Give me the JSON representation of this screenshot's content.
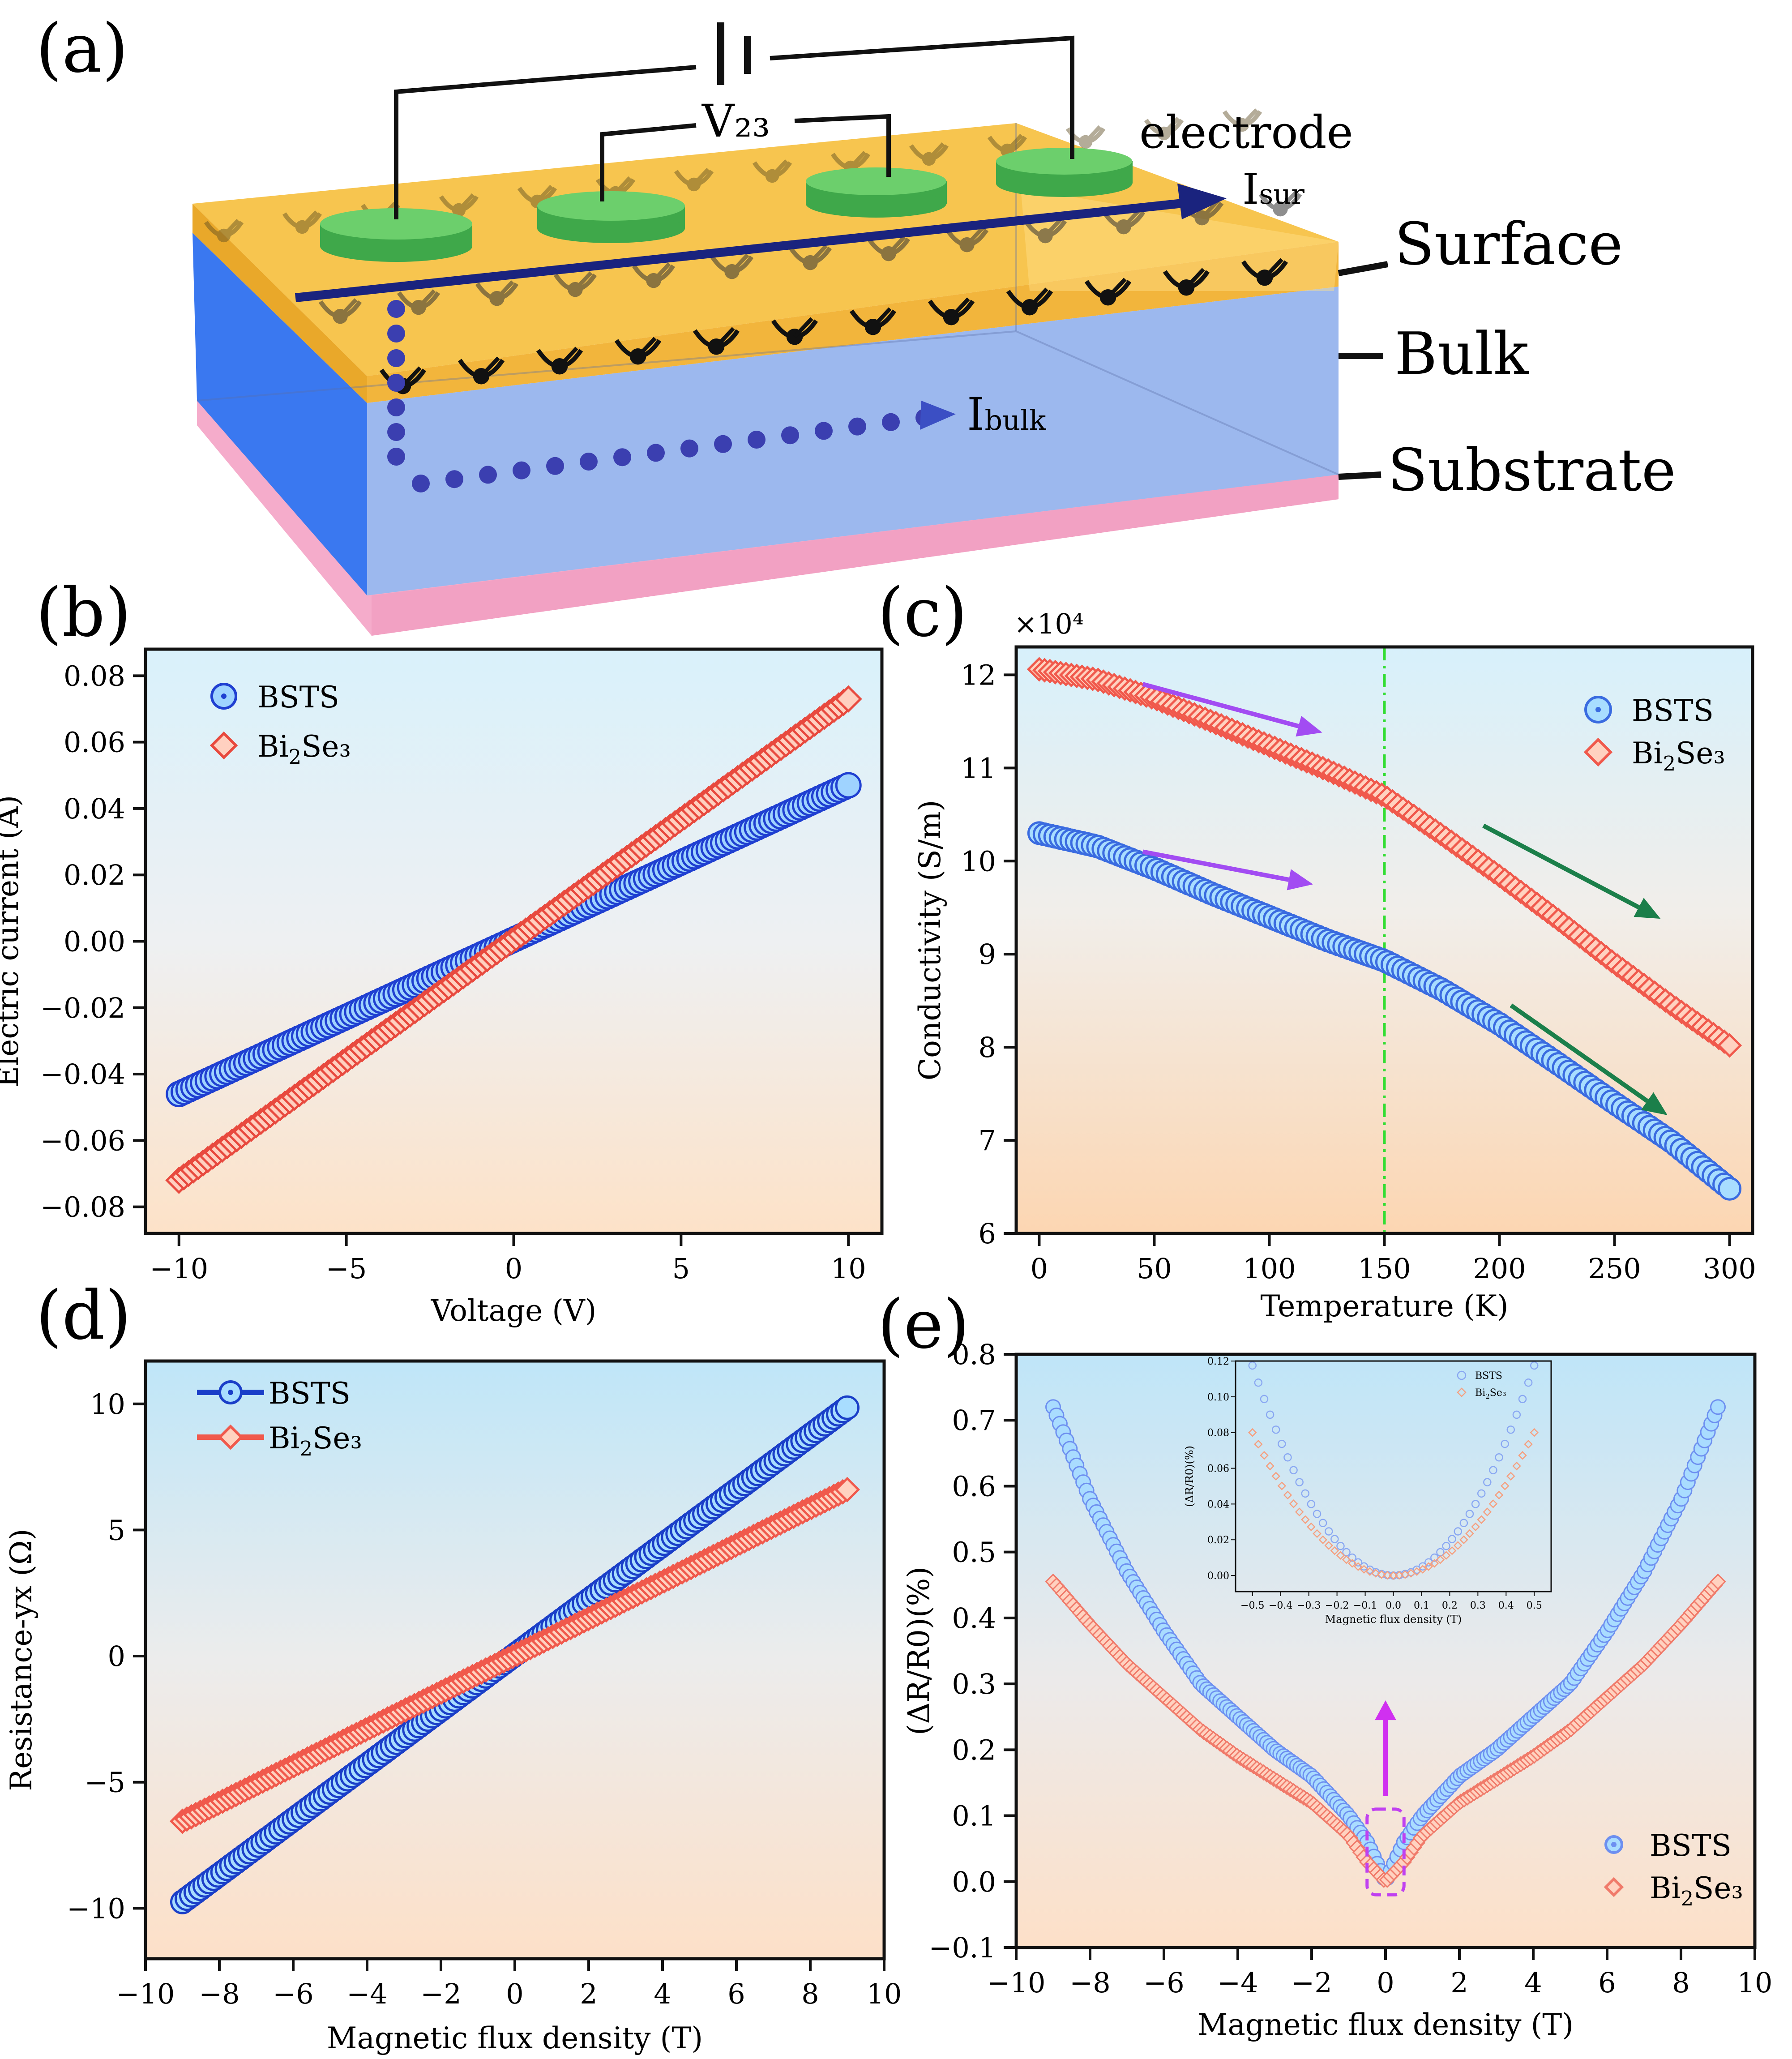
{
  "figure": {
    "schematic": {
      "panel_label": "(a)",
      "labels": {
        "v23": "V₂₃",
        "electrode": "electrode",
        "isur": "I",
        "isur_sub": "sur",
        "ibulk": "I",
        "ibulk_sub": "bulk",
        "surface": "Surface",
        "bulk": "Bulk",
        "substrate": "Substrate"
      },
      "colors": {
        "surface": "#f5b730",
        "bulk": "#5b8df0",
        "substrate": "#f2a6c6",
        "electrode": "#5cbf5c",
        "arrow": "#1a237e"
      }
    }
  },
  "chart_data": [
    {
      "id": "b",
      "panel_label": "(b)",
      "type": "scatter",
      "xlabel": "Voltage (V)",
      "ylabel": "Electric current (A)",
      "xlim": [
        -11,
        11
      ],
      "ylim": [
        -0.088,
        0.088
      ],
      "xticks": [
        -10,
        -5,
        0,
        5,
        10
      ],
      "xtick_labels": [
        "−10",
        "−5",
        "0",
        "5",
        "10"
      ],
      "yticks": [
        -0.08,
        -0.06,
        -0.04,
        -0.02,
        0.0,
        0.02,
        0.04,
        0.06,
        0.08
      ],
      "ytick_labels": [
        "−0.08",
        "−0.06",
        "−0.04",
        "−0.02",
        "0.00",
        "0.02",
        "0.04",
        "0.06",
        "0.08"
      ],
      "legend": {
        "position": "top-left"
      },
      "series": [
        {
          "name": "BSTS",
          "sub": "",
          "tail": "",
          "marker": "circle",
          "color": "#1f3fd1",
          "fill": "#9fd3ff",
          "x": [
            -10,
            10
          ],
          "y": [
            -0.046,
            0.047
          ],
          "npoints": 140
        },
        {
          "name": "Bi",
          "sub": "2",
          "tail": "Se₃",
          "marker": "diamond",
          "color": "#e8493e",
          "fill": "#ffd0c0",
          "x": [
            -10,
            10
          ],
          "y": [
            -0.072,
            0.073
          ],
          "npoints": 140
        }
      ]
    },
    {
      "id": "c",
      "panel_label": "(c)",
      "type": "scatter",
      "xlabel": "Temperature (K)",
      "ylabel": "Conductivity (S/m)",
      "multiplier": "×10⁴",
      "xlim": [
        -10,
        310
      ],
      "ylim": [
        6,
        12.3
      ],
      "xticks": [
        0,
        50,
        100,
        150,
        200,
        250,
        300
      ],
      "xtick_labels": [
        "0",
        "50",
        "100",
        "150",
        "200",
        "250",
        "300"
      ],
      "yticks": [
        6,
        7,
        8,
        9,
        10,
        11,
        12
      ],
      "ytick_labels": [
        "6",
        "7",
        "8",
        "9",
        "10",
        "11",
        "12"
      ],
      "vline": 150,
      "legend": {
        "position": "top-right"
      },
      "series": [
        {
          "name": "BSTS",
          "sub": "",
          "tail": "",
          "marker": "circle",
          "color": "#3a6be0",
          "fill": "#a8ddff",
          "x": [
            0,
            25,
            50,
            75,
            100,
            125,
            150,
            175,
            200,
            225,
            250,
            275,
            300
          ],
          "y": [
            10.3,
            10.16,
            9.92,
            9.65,
            9.4,
            9.15,
            8.93,
            8.62,
            8.25,
            7.83,
            7.4,
            6.98,
            6.48
          ],
          "npoints": 130
        },
        {
          "name": "Bi",
          "sub": "2",
          "tail": "Se₃",
          "marker": "diamond",
          "color": "#f0594c",
          "fill": "#ffd2c0",
          "x": [
            0,
            25,
            50,
            75,
            100,
            125,
            150,
            175,
            200,
            225,
            250,
            275,
            300
          ],
          "y": [
            12.06,
            11.95,
            11.75,
            11.5,
            11.24,
            10.98,
            10.7,
            10.28,
            9.84,
            9.38,
            8.9,
            8.45,
            8.02
          ],
          "npoints": 130
        }
      ],
      "arrows": [
        {
          "x1": 45,
          "y1": 11.9,
          "x2": 123,
          "y2": 11.38,
          "color": "#a24cf2"
        },
        {
          "x1": 45,
          "y1": 10.1,
          "x2": 119,
          "y2": 9.75,
          "color": "#a24cf2"
        },
        {
          "x1": 193,
          "y1": 10.38,
          "x2": 270,
          "y2": 9.38,
          "color": "#1b7f4a"
        },
        {
          "x1": 205,
          "y1": 8.45,
          "x2": 273,
          "y2": 7.27,
          "color": "#1b7f4a"
        }
      ]
    },
    {
      "id": "d",
      "panel_label": "(d)",
      "type": "scatter",
      "xlabel": "Magnetic flux density (T)",
      "ylabel": "Resistance-yx (Ω)",
      "xlim": [
        -10,
        10
      ],
      "ylim": [
        -12,
        11.7
      ],
      "xticks": [
        -10,
        -8,
        -6,
        -4,
        -2,
        0,
        2,
        4,
        6,
        8,
        10
      ],
      "xtick_labels": [
        "−10",
        "−8",
        "−6",
        "−4",
        "−2",
        "0",
        "2",
        "4",
        "6",
        "8",
        "10"
      ],
      "yticks": [
        -10,
        -5,
        0,
        5,
        10
      ],
      "ytick_labels": [
        "−10",
        "−5",
        "0",
        "5",
        "10"
      ],
      "legend": {
        "position": "top-left",
        "with_line": true
      },
      "series": [
        {
          "name": "BSTS",
          "sub": "",
          "tail": "",
          "marker": "circle",
          "color": "#1a3ec8",
          "fill": "#a8ddff",
          "x": [
            -9,
            9
          ],
          "y": [
            -9.75,
            9.85
          ],
          "npoints": 150
        },
        {
          "name": "Bi",
          "sub": "2",
          "tail": "Se₃",
          "marker": "diamond",
          "color": "#f0594c",
          "fill": "#ffd2c0",
          "x": [
            -9,
            9
          ],
          "y": [
            -6.55,
            6.6
          ],
          "npoints": 150
        }
      ]
    },
    {
      "id": "e",
      "panel_label": "(e)",
      "type": "scatter",
      "xlabel": "Magnetic flux density (T)",
      "ylabel": "(ΔR/R0)(%)",
      "xlim": [
        -10,
        10
      ],
      "ylim": [
        -0.1,
        0.8
      ],
      "xticks": [
        -10,
        -8,
        -6,
        -4,
        -2,
        0,
        2,
        4,
        6,
        8,
        10
      ],
      "xtick_labels": [
        "−10",
        "−8",
        "−6",
        "−4",
        "−2",
        "0",
        "2",
        "4",
        "6",
        "8",
        "10"
      ],
      "yticks": [
        -0.1,
        0.0,
        0.1,
        0.2,
        0.3,
        0.4,
        0.5,
        0.6,
        0.7,
        0.8
      ],
      "ytick_labels": [
        "−0.1",
        "0.0",
        "0.1",
        "0.2",
        "0.3",
        "0.4",
        "0.5",
        "0.6",
        "0.7",
        "0.8"
      ],
      "legend": {
        "position": "bottom-right"
      },
      "series": [
        {
          "name": "BSTS",
          "sub": "",
          "tail": "",
          "marker": "circle",
          "color": "#6d8ff0",
          "fill": "#a9dcff",
          "x": [
            0,
            0.5,
            1,
            2,
            3,
            4,
            5,
            6,
            7,
            8,
            9
          ],
          "y": [
            0,
            0.06,
            0.1,
            0.16,
            0.2,
            0.25,
            0.3,
            0.38,
            0.47,
            0.58,
            0.72
          ],
          "npoints": 200,
          "mirror": true
        },
        {
          "name": "Bi",
          "sub": "2",
          "tail": "Se₃",
          "marker": "diamond",
          "color": "#f07a6a",
          "fill": "#ffd2c0",
          "x": [
            0,
            0.5,
            1,
            2,
            3,
            4,
            5,
            6,
            7,
            8,
            9
          ],
          "y": [
            0,
            0.03,
            0.07,
            0.12,
            0.155,
            0.19,
            0.23,
            0.28,
            0.33,
            0.39,
            0.455
          ],
          "npoints": 200,
          "mirror": true
        }
      ],
      "zoom_box": {
        "x": [
          -0.5,
          0.5
        ],
        "y": [
          -0.02,
          0.11
        ]
      },
      "inset": {
        "xlabel": "Magnetic flux density (T)",
        "ylabel": "(ΔR/R0)(%)",
        "xlim": [
          -0.56,
          0.56
        ],
        "ylim": [
          -0.009,
          0.12
        ],
        "xticks": [
          -0.5,
          -0.4,
          -0.3,
          -0.2,
          -0.1,
          0.0,
          0.1,
          0.2,
          0.3,
          0.4,
          0.5
        ],
        "xtick_labels": [
          "−0.5",
          "−0.4",
          "−0.3",
          "−0.2",
          "−0.1",
          "0.0",
          "0.1",
          "0.2",
          "0.3",
          "0.4",
          "0.5"
        ],
        "yticks": [
          0.0,
          0.02,
          0.04,
          0.06,
          0.08,
          0.1,
          0.12
        ],
        "ytick_labels": [
          "0.00",
          "0.02",
          "0.04",
          "0.06",
          "0.08",
          "0.10",
          "0.12"
        ],
        "series": [
          {
            "name": "BSTS",
            "sub": "",
            "tail": "",
            "marker": "circle",
            "color": "#8aa8f2",
            "coef": 0.47,
            "npoints": 49
          },
          {
            "name": "Bi",
            "sub": "2",
            "tail": "Se₃",
            "marker": "diamond",
            "color": "#f5a080",
            "coef": 0.32,
            "npoints": 49
          }
        ]
      }
    }
  ]
}
